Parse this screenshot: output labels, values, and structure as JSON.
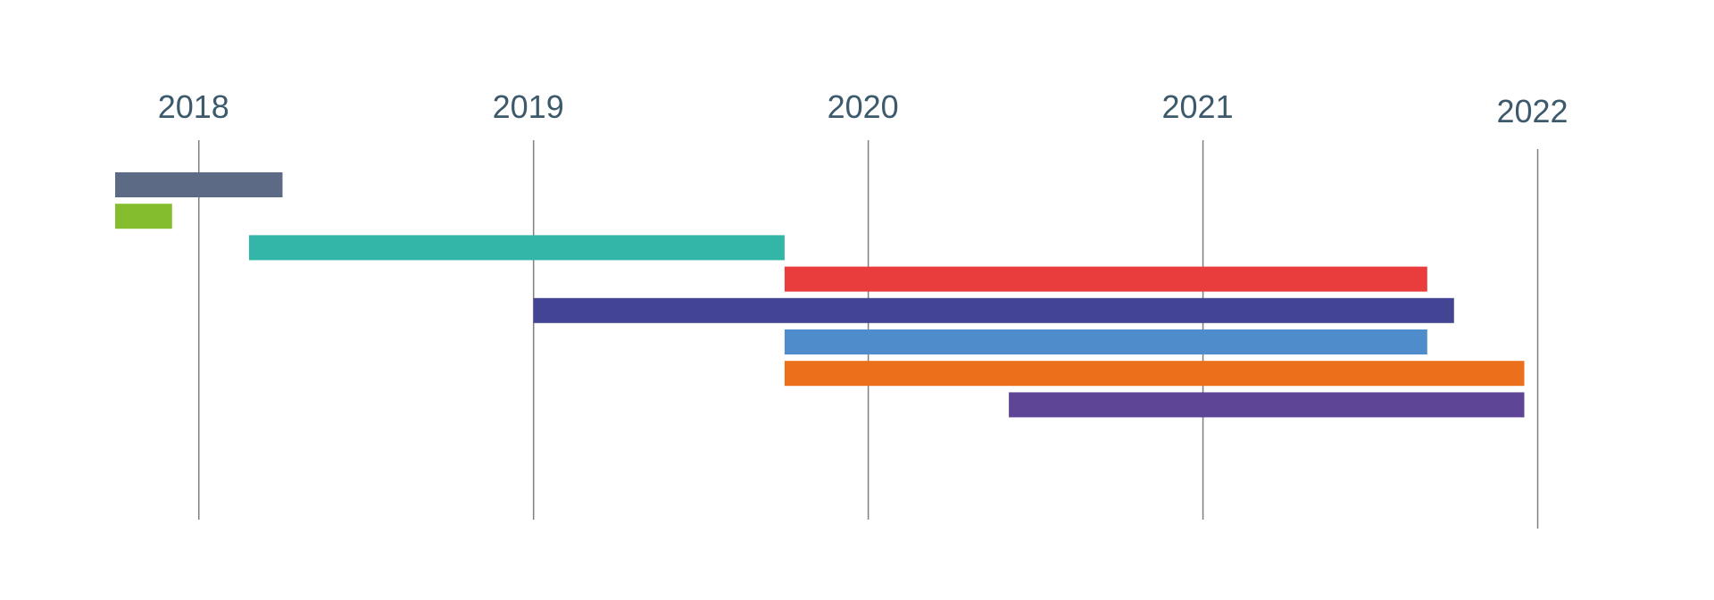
{
  "chart_data": {
    "type": "bar",
    "orientation": "horizontal-timeline",
    "title": "",
    "xlabel": "",
    "ylabel": "",
    "x_ticks": [
      "2018",
      "2019",
      "2020",
      "2021",
      "2022"
    ],
    "x_tick_values": [
      2018,
      2019,
      2020,
      2021,
      2022
    ],
    "xlim": [
      2017.75,
      2022.1
    ],
    "grid": "vertical-at-ticks",
    "legend": "none",
    "series": [
      {
        "start": 2017.75,
        "end": 2018.25,
        "color": "#5d6a86"
      },
      {
        "start": 2017.75,
        "end": 2017.92,
        "color": "#84bd2e"
      },
      {
        "start": 2018.15,
        "end": 2019.75,
        "color": "#33b5a8"
      },
      {
        "start": 2019.75,
        "end": 2021.67,
        "color": "#e83c3d"
      },
      {
        "start": 2019.0,
        "end": 2021.75,
        "color": "#434494"
      },
      {
        "start": 2019.75,
        "end": 2021.67,
        "color": "#4f8ccb"
      },
      {
        "start": 2019.75,
        "end": 2021.96,
        "color": "#ec701b"
      },
      {
        "start": 2020.42,
        "end": 2021.96,
        "color": "#5f4596"
      }
    ]
  }
}
